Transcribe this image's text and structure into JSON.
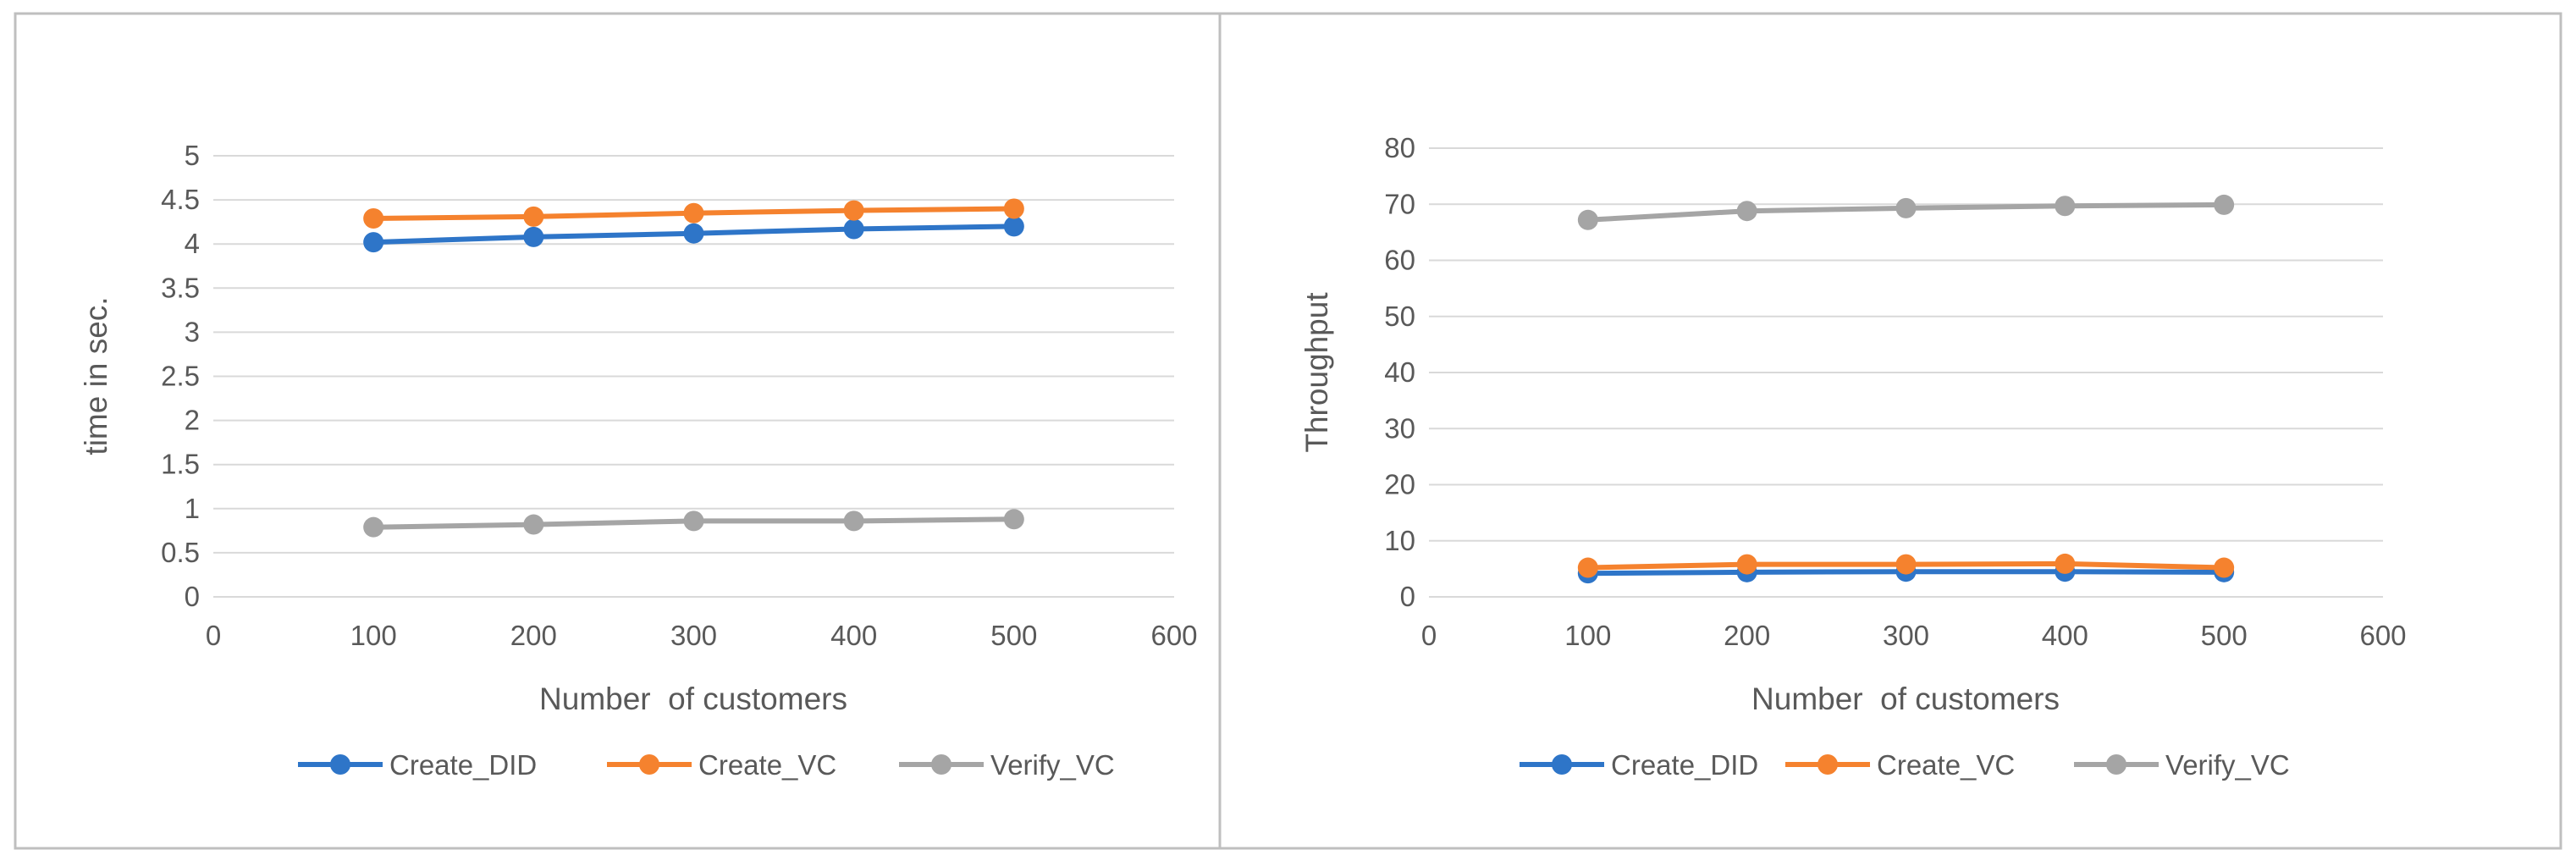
{
  "colors": {
    "Create_DID": "#2E75C8",
    "Create_VC": "#F5822E",
    "Verify_VC": "#A5A5A5",
    "gridline": "#D9D9D9",
    "text": "#595959",
    "frame": "#BFBFBF"
  },
  "chart_data": [
    {
      "type": "line",
      "title": "",
      "xlabel": "Number  of customers",
      "ylabel": "time in sec.",
      "xlim": [
        0,
        600
      ],
      "ylim": [
        0,
        5
      ],
      "xticks": [
        0,
        100,
        200,
        300,
        400,
        500,
        600
      ],
      "yticks": [
        0,
        0.5,
        1,
        1.5,
        2,
        2.5,
        3,
        3.5,
        4,
        4.5,
        5
      ],
      "xtick_labels": [
        "0",
        "100",
        "200",
        "300",
        "400",
        "500",
        "600"
      ],
      "ytick_labels": [
        "0",
        "0.5",
        "1",
        "1.5",
        "2",
        "2.5",
        "3",
        "3.5",
        "4",
        "4.5",
        "5"
      ],
      "grid": true,
      "legend": "bottom",
      "x": [
        100,
        200,
        300,
        400,
        500
      ],
      "series": [
        {
          "name": "Create_DID",
          "values": [
            4.02,
            4.08,
            4.12,
            4.17,
            4.2
          ]
        },
        {
          "name": "Create_VC",
          "values": [
            4.29,
            4.31,
            4.35,
            4.38,
            4.4
          ]
        },
        {
          "name": "Verify_VC",
          "values": [
            0.79,
            0.82,
            0.86,
            0.86,
            0.88
          ]
        }
      ]
    },
    {
      "type": "line",
      "title": "",
      "xlabel": "Number  of customers",
      "ylabel": "Throughput",
      "xlim": [
        0,
        600
      ],
      "ylim": [
        0,
        80
      ],
      "xticks": [
        0,
        100,
        200,
        300,
        400,
        500,
        600
      ],
      "yticks": [
        0,
        10,
        20,
        30,
        40,
        50,
        60,
        70,
        80
      ],
      "xtick_labels": [
        "0",
        "100",
        "200",
        "300",
        "400",
        "500",
        "600"
      ],
      "ytick_labels": [
        "0",
        "10",
        "20",
        "30",
        "40",
        "50",
        "60",
        "70",
        "80"
      ],
      "grid": true,
      "legend": "bottom",
      "x": [
        100,
        200,
        300,
        400,
        500
      ],
      "series": [
        {
          "name": "Create_DID",
          "values": [
            4.2,
            4.4,
            4.5,
            4.5,
            4.4
          ]
        },
        {
          "name": "Create_VC",
          "values": [
            5.2,
            5.8,
            5.8,
            5.9,
            5.2
          ]
        },
        {
          "name": "Verify_VC",
          "values": [
            67.2,
            68.8,
            69.3,
            69.7,
            69.9
          ]
        }
      ]
    }
  ]
}
